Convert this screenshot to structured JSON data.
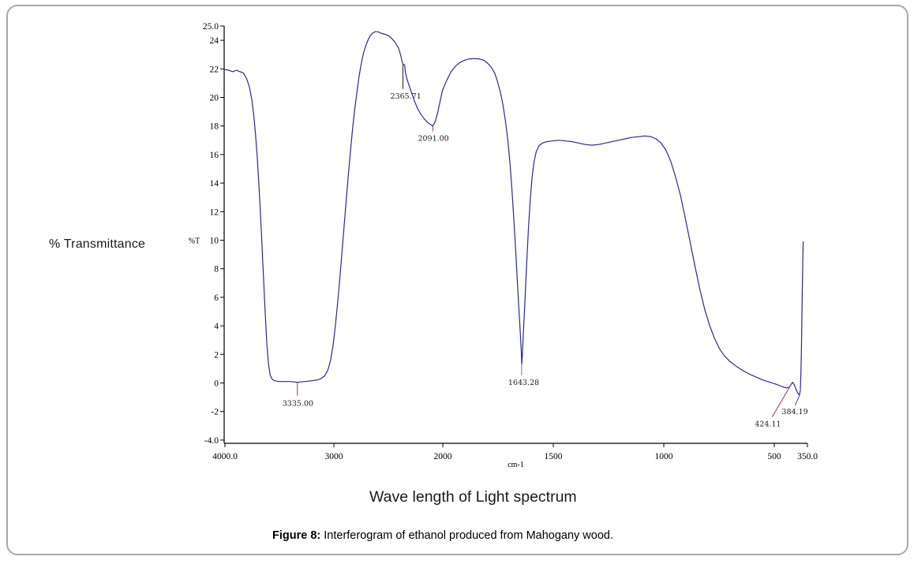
{
  "figure": {
    "y_axis_label": "% Transmittance",
    "y_unit_label": "%T",
    "x_unit_label": "cm-1",
    "title": "Wave length of Light spectrum",
    "caption_prefix": "Figure 8:",
    "caption_text": " Interferogram of ethanol produced from Mahogany wood."
  },
  "colors": {
    "curve": "#2b2b8f",
    "axis": "#000000",
    "frame_border": "#a9a9a9",
    "red_marker": "#9b3a3a",
    "dark_marker": "#222222",
    "valley_marker": "#9b6a5a",
    "blue_marker": "#3a4a9b"
  },
  "chart_data": {
    "type": "line",
    "title": "Wave length of Light spectrum",
    "xlabel": "cm-1",
    "ylabel": "%T",
    "x_axis": {
      "min": 350,
      "max": 4000,
      "direction": "decreasing-left-to-right",
      "scale_note": "region 4000-2000 cm-1 drawn at half scale of 2000-350 region",
      "ticks": [
        {
          "label": "4000.0",
          "value": 4000
        },
        {
          "label": "3000",
          "value": 3000
        },
        {
          "label": "2000",
          "value": 2000
        },
        {
          "label": "1500",
          "value": 1500
        },
        {
          "label": "1000",
          "value": 1000
        },
        {
          "label": "500",
          "value": 500
        },
        {
          "label": "350.0",
          "value": 350
        }
      ]
    },
    "y_axis": {
      "min": -4.0,
      "max": 25.0,
      "ticks": [
        {
          "label": "25.0",
          "value": 25
        },
        {
          "label": "24",
          "value": 24
        },
        {
          "label": "22",
          "value": 22
        },
        {
          "label": "20",
          "value": 20
        },
        {
          "label": "18",
          "value": 18
        },
        {
          "label": "16",
          "value": 16
        },
        {
          "label": "14",
          "value": 14
        },
        {
          "label": "12",
          "value": 12
        },
        {
          "label": "10",
          "value": 10
        },
        {
          "label": "8",
          "value": 8
        },
        {
          "label": "6",
          "value": 6
        },
        {
          "label": "4",
          "value": 4
        },
        {
          "label": "2",
          "value": 2
        },
        {
          "label": "0",
          "value": 0
        },
        {
          "label": "-2",
          "value": -2
        },
        {
          "label": "-4.0",
          "value": -4
        }
      ]
    },
    "legend": "none",
    "grid": false,
    "series": [
      {
        "name": "transmittance-spectrum",
        "color": "#2b2b8f",
        "points": [
          [
            4000,
            21.95
          ],
          [
            3965,
            21.9
          ],
          [
            3930,
            21.8
          ],
          [
            3895,
            21.9
          ],
          [
            3860,
            21.8
          ],
          [
            3830,
            21.7
          ],
          [
            3800,
            21.3
          ],
          [
            3775,
            20.7
          ],
          [
            3752,
            19.8
          ],
          [
            3735,
            18.7
          ],
          [
            3720,
            17.5
          ],
          [
            3705,
            16.0
          ],
          [
            3690,
            14.1
          ],
          [
            3675,
            12.0
          ],
          [
            3660,
            9.7
          ],
          [
            3645,
            7.2
          ],
          [
            3630,
            4.8
          ],
          [
            3615,
            2.7
          ],
          [
            3600,
            1.3
          ],
          [
            3585,
            0.55
          ],
          [
            3565,
            0.25
          ],
          [
            3540,
            0.15
          ],
          [
            3500,
            0.1
          ],
          [
            3450,
            0.1
          ],
          [
            3400,
            0.1
          ],
          [
            3335,
            0.05
          ],
          [
            3270,
            0.1
          ],
          [
            3210,
            0.15
          ],
          [
            3160,
            0.2
          ],
          [
            3120,
            0.3
          ],
          [
            3085,
            0.5
          ],
          [
            3055,
            0.9
          ],
          [
            3030,
            1.6
          ],
          [
            3008,
            2.6
          ],
          [
            2988,
            3.9
          ],
          [
            2968,
            5.4
          ],
          [
            2948,
            7.1
          ],
          [
            2928,
            8.9
          ],
          [
            2908,
            10.8
          ],
          [
            2888,
            12.7
          ],
          [
            2868,
            14.5
          ],
          [
            2848,
            16.2
          ],
          [
            2828,
            17.8
          ],
          [
            2808,
            19.2
          ],
          [
            2788,
            20.4
          ],
          [
            2768,
            21.5
          ],
          [
            2748,
            22.4
          ],
          [
            2728,
            23.1
          ],
          [
            2708,
            23.6
          ],
          [
            2688,
            24.0
          ],
          [
            2668,
            24.3
          ],
          [
            2645,
            24.5
          ],
          [
            2620,
            24.6
          ],
          [
            2595,
            24.6
          ],
          [
            2570,
            24.5
          ],
          [
            2545,
            24.45
          ],
          [
            2520,
            24.4
          ],
          [
            2493,
            24.3
          ],
          [
            2465,
            24.1
          ],
          [
            2442,
            23.9
          ],
          [
            2406,
            23.45
          ],
          [
            2385,
            22.9
          ],
          [
            2372,
            22.45
          ],
          [
            2362,
            22.3
          ],
          [
            2350,
            22.28
          ],
          [
            2344,
            21.8
          ],
          [
            2330,
            21.3
          ],
          [
            2308,
            20.8
          ],
          [
            2285,
            20.3
          ],
          [
            2258,
            19.7
          ],
          [
            2230,
            19.2
          ],
          [
            2200,
            18.8
          ],
          [
            2170,
            18.5
          ],
          [
            2140,
            18.25
          ],
          [
            2112,
            18.1
          ],
          [
            2091,
            18.0
          ],
          [
            2070,
            18.3
          ],
          [
            2048,
            18.9
          ],
          [
            2025,
            19.7
          ],
          [
            2003,
            20.5
          ],
          [
            1982,
            21.2
          ],
          [
            1962,
            21.8
          ],
          [
            1942,
            22.2
          ],
          [
            1922,
            22.45
          ],
          [
            1902,
            22.6
          ],
          [
            1880,
            22.7
          ],
          [
            1858,
            22.72
          ],
          [
            1836,
            22.7
          ],
          [
            1815,
            22.6
          ],
          [
            1797,
            22.4
          ],
          [
            1780,
            22.1
          ],
          [
            1765,
            21.7
          ],
          [
            1752,
            21.1
          ],
          [
            1740,
            20.4
          ],
          [
            1728,
            19.5
          ],
          [
            1716,
            18.3
          ],
          [
            1705,
            16.9
          ],
          [
            1695,
            15.2
          ],
          [
            1686,
            13.3
          ],
          [
            1678,
            11.3
          ],
          [
            1670,
            9.2
          ],
          [
            1663,
            7.2
          ],
          [
            1656,
            5.3
          ],
          [
            1650,
            3.7
          ],
          [
            1645,
            2.3
          ],
          [
            1643,
            1.3
          ],
          [
            1640,
            2.0
          ],
          [
            1635,
            3.6
          ],
          [
            1628,
            5.9
          ],
          [
            1620,
            8.5
          ],
          [
            1612,
            10.9
          ],
          [
            1604,
            12.9
          ],
          [
            1596,
            14.4
          ],
          [
            1587,
            15.5
          ],
          [
            1577,
            16.2
          ],
          [
            1565,
            16.6
          ],
          [
            1550,
            16.8
          ],
          [
            1530,
            16.9
          ],
          [
            1505,
            16.95
          ],
          [
            1475,
            17.0
          ],
          [
            1445,
            16.95
          ],
          [
            1415,
            16.9
          ],
          [
            1385,
            16.8
          ],
          [
            1355,
            16.7
          ],
          [
            1325,
            16.65
          ],
          [
            1295,
            16.7
          ],
          [
            1265,
            16.8
          ],
          [
            1235,
            16.9
          ],
          [
            1205,
            17.0
          ],
          [
            1175,
            17.1
          ],
          [
            1145,
            17.2
          ],
          [
            1115,
            17.25
          ],
          [
            1085,
            17.3
          ],
          [
            1058,
            17.25
          ],
          [
            1035,
            17.1
          ],
          [
            1012,
            16.8
          ],
          [
            990,
            16.3
          ],
          [
            968,
            15.5
          ],
          [
            946,
            14.4
          ],
          [
            924,
            13.1
          ],
          [
            902,
            11.5
          ],
          [
            880,
            9.8
          ],
          [
            858,
            8.1
          ],
          [
            836,
            6.5
          ],
          [
            814,
            5.1
          ],
          [
            792,
            4.0
          ],
          [
            770,
            3.1
          ],
          [
            748,
            2.4
          ],
          [
            726,
            1.9
          ],
          [
            700,
            1.5
          ],
          [
            670,
            1.15
          ],
          [
            640,
            0.85
          ],
          [
            610,
            0.6
          ],
          [
            580,
            0.4
          ],
          [
            550,
            0.2
          ],
          [
            520,
            0.05
          ],
          [
            490,
            -0.1
          ],
          [
            465,
            -0.25
          ],
          [
            445,
            -0.35
          ],
          [
            432,
            -0.3
          ],
          [
            424,
            -0.1
          ],
          [
            417,
            0.05
          ],
          [
            409,
            -0.15
          ],
          [
            400,
            -0.5
          ],
          [
            392,
            -0.75
          ],
          [
            386,
            -0.85
          ],
          [
            382,
            -0.5
          ],
          [
            379.5,
            0.6
          ],
          [
            377.5,
            2.2
          ],
          [
            375.5,
            4.2
          ],
          [
            373.5,
            6.3
          ],
          [
            371.5,
            8.2
          ],
          [
            370,
            9.5
          ],
          [
            369,
            9.9
          ]
        ]
      }
    ],
    "annotations": [
      {
        "label": "3335.00",
        "cm": 3335,
        "value": 0.05,
        "line": [
          0,
          17
        ],
        "label_offset": [
          -19,
          30
        ],
        "color": "#9b3a3a"
      },
      {
        "label": "2365.71",
        "cm": 2365.71,
        "value": 22.3,
        "line": [
          0,
          31
        ],
        "label_offset": [
          -16,
          43
        ],
        "color": "#222222"
      },
      {
        "label": "2091.00",
        "cm": 2091,
        "value": 18.0,
        "line": [
          0,
          7
        ],
        "label_offset": [
          -19,
          19
        ],
        "color": "#9b3a3a"
      },
      {
        "label": "1643.28",
        "cm": 1643.28,
        "value": 1.25,
        "line": [
          0,
          13
        ],
        "label_offset": [
          -17,
          25
        ],
        "color": "#9b6a5a"
      },
      {
        "label": "424.11",
        "cm": 424.11,
        "value": -0.12,
        "line": [
          -24,
          41
        ],
        "label_offset": [
          -46,
          53
        ],
        "color": "#9b3a3a"
      },
      {
        "label": "384.19",
        "cm": 384.19,
        "value": -0.8,
        "line": [
          -6,
          14
        ],
        "label_offset": [
          -23,
          25
        ],
        "color": "#3a4a9b"
      }
    ]
  }
}
